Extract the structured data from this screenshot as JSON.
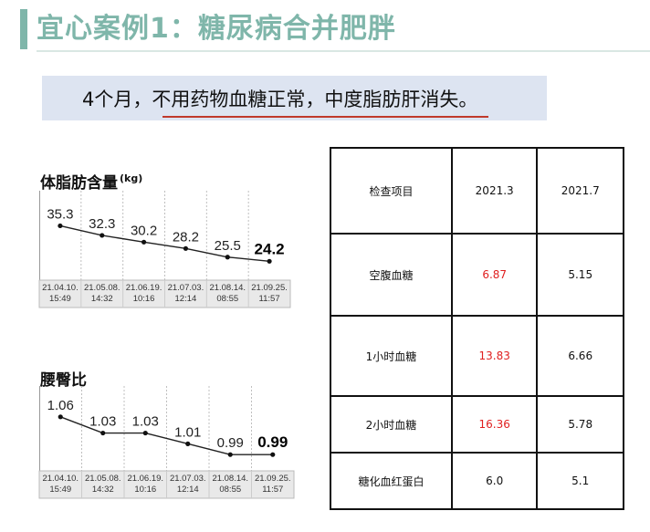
{
  "title": "宜心案例1：糖尿病合并肥胖",
  "banner": "4个月，不用药物血糖正常，中度脂肪肝消失。",
  "chart_data": [
    {
      "type": "line",
      "title": "体脂肪含量",
      "unit": "(kg)",
      "x": [
        "21.04.10.|15:49",
        "21.05.08.|14:32",
        "21.06.19.|10:16",
        "21.07.03.|12:14",
        "21.08.14.|08:55",
        "21.09.25.|11:57"
      ],
      "values": [
        35.3,
        32.3,
        30.2,
        28.2,
        25.5,
        24.2
      ],
      "value_labels": [
        "35.3",
        "32.3",
        "30.2",
        "28.2",
        "25.5",
        "24.2"
      ],
      "ylim": [
        20,
        40
      ]
    },
    {
      "type": "line",
      "title": "腰臀比",
      "unit": "",
      "x": [
        "21.04.10.|15:49",
        "21.05.08.|14:32",
        "21.06.19.|10:16",
        "21.07.03.|12:14",
        "21.08.14.|08:55",
        "21.09.25.|11:57"
      ],
      "values": [
        1.06,
        1.03,
        1.03,
        1.01,
        0.99,
        0.99
      ],
      "value_labels": [
        "1.06",
        "1.03",
        "1.03",
        "1.01",
        "0.99",
        "0.99"
      ],
      "ylim": [
        0.97,
        1.08
      ]
    }
  ],
  "table": {
    "header": [
      "检查项目",
      "2021.3",
      "2021.7"
    ],
    "rows": [
      {
        "item": "空腹血糖",
        "v1": "6.87",
        "v2": "5.15"
      },
      {
        "item": "1小时血糖",
        "v1": "13.83",
        "v2": "6.66"
      },
      {
        "item": "2小时血糖",
        "v1": "16.36",
        "v2": "5.78"
      },
      {
        "item": "糖化血红蛋白",
        "v1": "6.0",
        "v2": "5.1"
      }
    ]
  },
  "colors": {
    "accent": "#7fb6aa",
    "banner_bg": "#dde4f1",
    "highlight": "#e02020",
    "underline": "#c0392b"
  }
}
